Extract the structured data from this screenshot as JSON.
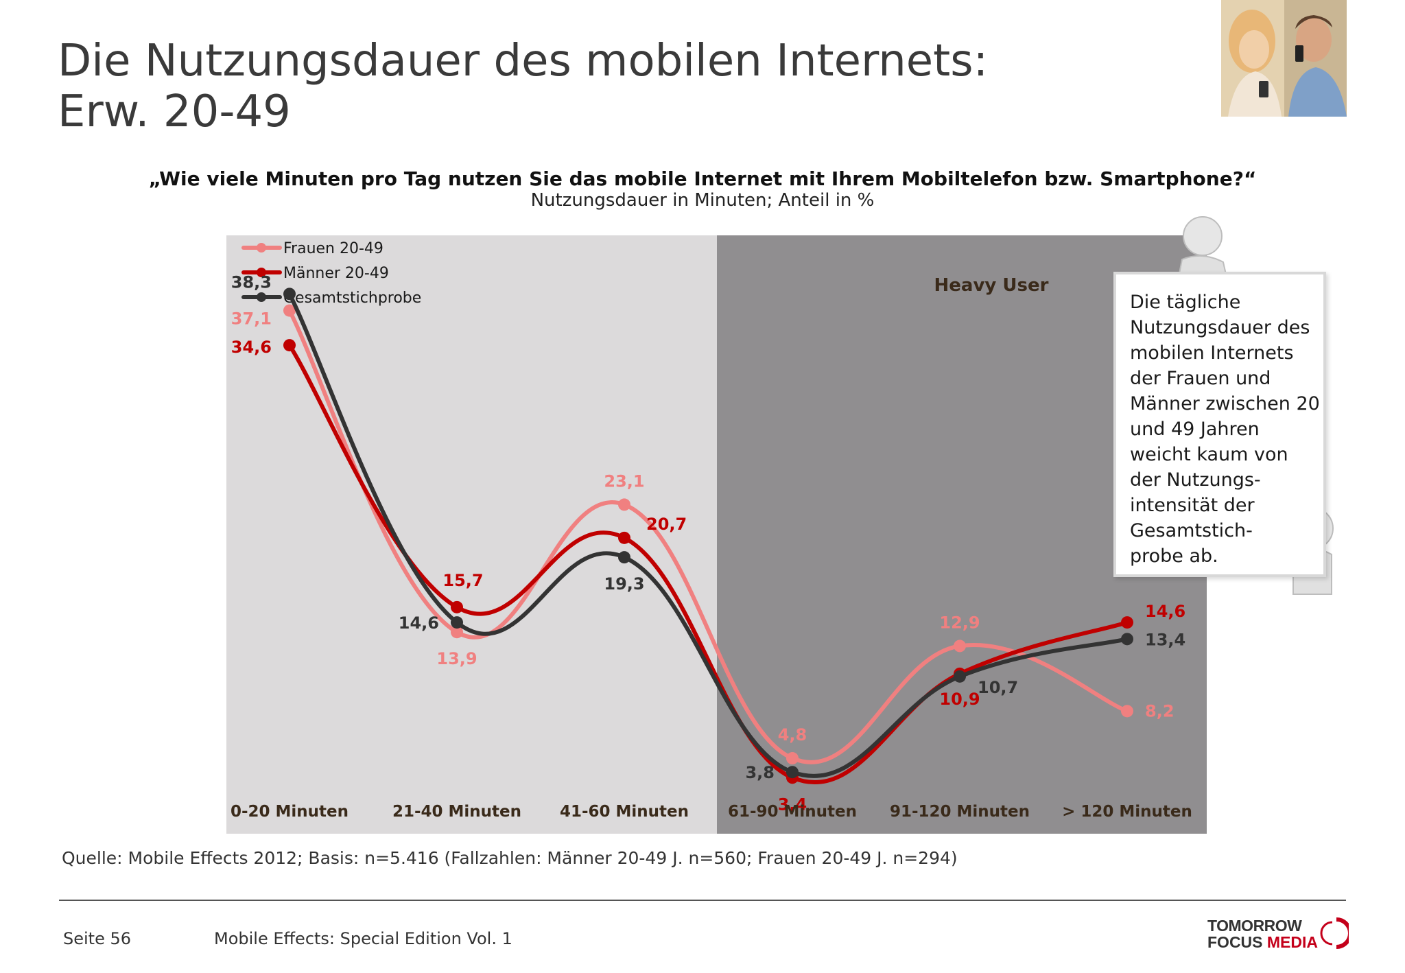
{
  "title": {
    "line1": "Die Nutzungsdauer des mobilen Internets:",
    "line2": "Erw. 20-49"
  },
  "question": "„Wie viele Minuten pro Tag nutzen Sie das mobile Internet mit Ihrem Mobiltelefon bzw. Smartphone?“",
  "unit_note": "Nutzungsdauer in Minuten; Anteil in %",
  "chart_data": {
    "type": "line",
    "categories": [
      "0-20 Minuten",
      "21-40 Minuten",
      "41-60 Minuten",
      "61-90 Minuten",
      "91-120 Minuten",
      "> 120 Minuten"
    ],
    "series": [
      {
        "name": "Frauen 20-49",
        "color": "#f08080",
        "values": [
          37.1,
          13.9,
          23.1,
          4.8,
          12.9,
          8.2
        ],
        "labels": [
          "37,1",
          "13,9",
          "23,1",
          "4,8",
          "12,9",
          "8,2"
        ]
      },
      {
        "name": "Männer 20-49",
        "color": "#c00000",
        "values": [
          34.6,
          15.7,
          20.7,
          3.4,
          10.9,
          14.6
        ],
        "labels": [
          "34,6",
          "15,7",
          "20,7",
          "3,4",
          "10,9",
          "14,6"
        ]
      },
      {
        "name": "Gesamtstichprobe",
        "color": "#333333",
        "values": [
          38.3,
          14.6,
          19.3,
          3.8,
          10.7,
          13.4
        ],
        "labels": [
          "38,3",
          "14,6",
          "19,3",
          "3,8",
          "10,7",
          "13,4"
        ]
      }
    ],
    "heavy_user_label": "Heavy User",
    "legend_position": "top-left",
    "grid": false
  },
  "callout_lines": [
    "Die tägliche",
    "Nutzungsdauer des",
    "mobilen Internets",
    "der Frauen und",
    "Männer zwischen 20",
    "und 49 Jahren",
    "weicht kaum von",
    "der Nutzungs-",
    "intensität der",
    "Gesamtstich-",
    "probe ab."
  ],
  "source": "Quelle: Mobile Effects 2012; Basis: n=5.416 (Fallzahlen: Männer 20-49 J. n=560; Frauen 20-49 J. n=294)",
  "footer": {
    "page": "Seite 56",
    "edition": "Mobile Effects: Special Edition Vol. 1"
  },
  "logo": {
    "line1": "TOMORROW",
    "line2a": "FOCUS",
    "line2b": "MEDIA"
  }
}
